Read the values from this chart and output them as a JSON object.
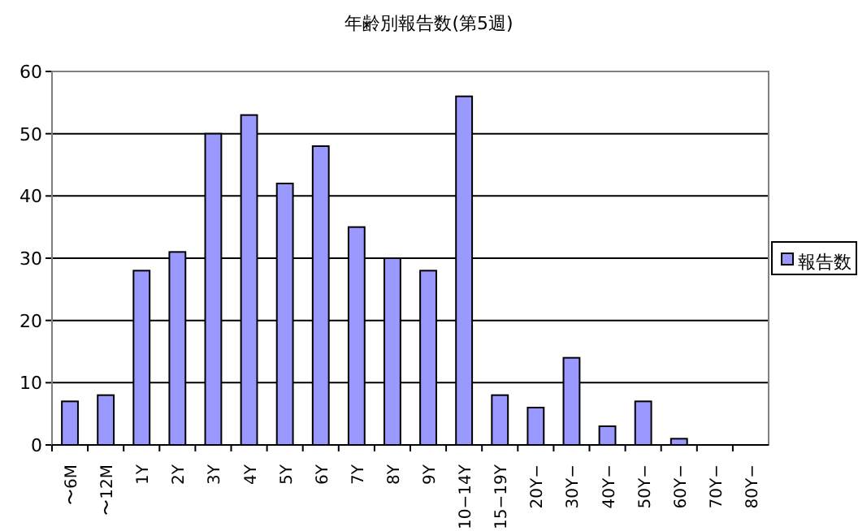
{
  "chart_data": {
    "type": "bar",
    "title": "年齢別報告数(第5週)",
    "categories": [
      "〜6M",
      "〜12M",
      "1Y",
      "2Y",
      "3Y",
      "4Y",
      "5Y",
      "6Y",
      "7Y",
      "8Y",
      "9Y",
      "10−14Y",
      "15−19Y",
      "20Y−",
      "30Y−",
      "40Y−",
      "50Y−",
      "60Y−",
      "70Y−",
      "80Y−"
    ],
    "series": [
      {
        "name": "報告数",
        "color": "#9999ff",
        "values": [
          7,
          8,
          28,
          31,
          50,
          53,
          42,
          48,
          35,
          30,
          28,
          56,
          8,
          6,
          14,
          3,
          7,
          1,
          0,
          0
        ]
      }
    ],
    "ylim": [
      0,
      60
    ],
    "yticks": [
      0,
      10,
      20,
      30,
      40,
      50,
      60
    ],
    "grid": "y",
    "legend": "right"
  }
}
